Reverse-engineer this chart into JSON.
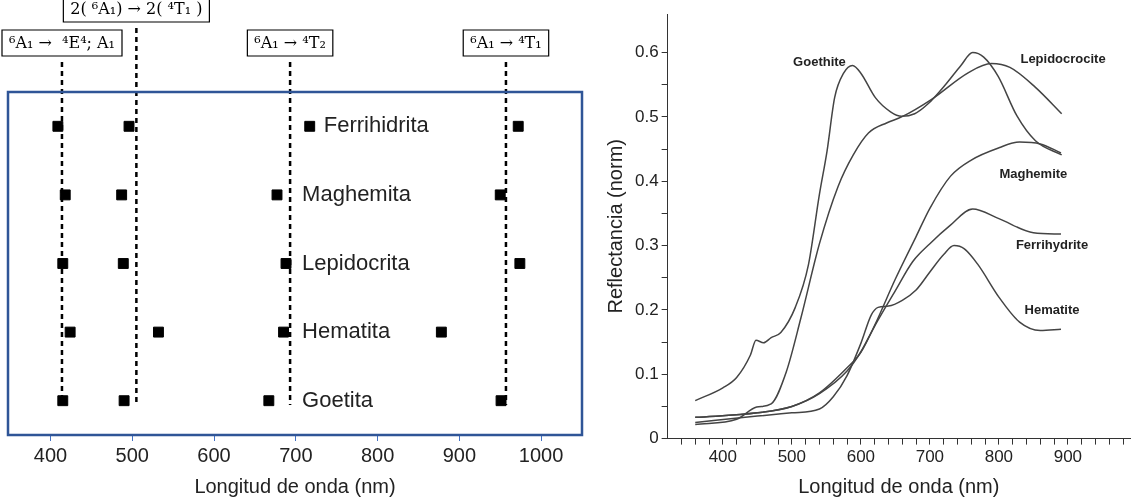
{
  "chart_data": [
    {
      "type": "scatter",
      "orientation": "horizontal",
      "xlabel": "Longitud de onda (nm)",
      "categories": [
        "Ferrihidrita",
        "Maghemita",
        "Lepidocrita",
        "Hematita",
        "Goetita"
      ],
      "series": [
        {
          "color": "#000000",
          "values": [
            409,
            418,
            415,
            424,
            415
          ]
        },
        {
          "color": "#000000",
          "values": [
            496,
            487,
            489,
            532,
            490
          ]
        },
        {
          "color": "#000000",
          "values": [
            717,
            677,
            688,
            685,
            667
          ]
        },
        {
          "color": "#000000",
          "values": [
            972,
            950,
            974,
            878,
            951
          ]
        }
      ],
      "marker": "square",
      "xlim": [
        348,
        1050
      ],
      "xticks": [
        400,
        500,
        600,
        700,
        800,
        900,
        1000
      ],
      "tick_labels": "x",
      "grid": false,
      "legend": false,
      "ref_lines": [
        {
          "axis": "x",
          "value": 414,
          "label": "⁶A₁ →  ⁴E⁴; A₁",
          "line_style": "dashed",
          "color": "#000000"
        },
        {
          "axis": "x",
          "value": 505,
          "label": "2( ⁶A₁) → 2( ⁴T₁ )",
          "line_style": "dashed",
          "color": "#000000"
        },
        {
          "axis": "x",
          "value": 693,
          "label": "⁶A₁ → ⁴T₂",
          "line_style": "dashed",
          "color": "#000000"
        },
        {
          "axis": "x",
          "value": 957,
          "label": "⁶A₁ → ⁴T₁",
          "line_style": "dashed",
          "color": "#000000"
        }
      ]
    },
    {
      "type": "line",
      "xlabel": "Longitud de onda (nm)",
      "ylabel": "Reflectancia (norm)",
      "marker": "none",
      "line_style": "solid",
      "grid": false,
      "legend": false,
      "xlim": [
        320,
        990
      ],
      "ylim": [
        0,
        0.66
      ],
      "xticks": [
        {
          "value": 340,
          "label": null
        },
        {
          "value": 360,
          "label": null
        },
        {
          "value": 380,
          "label": null
        },
        400,
        {
          "value": 420,
          "label": null
        },
        {
          "value": 440,
          "label": null
        },
        {
          "value": 460,
          "label": null
        },
        {
          "value": 480,
          "label": null
        },
        500,
        {
          "value": 520,
          "label": null
        },
        {
          "value": 540,
          "label": null
        },
        {
          "value": 560,
          "label": null
        },
        {
          "value": 580,
          "label": null
        },
        600,
        {
          "value": 620,
          "label": null
        },
        {
          "value": 640,
          "label": null
        },
        {
          "value": 660,
          "label": null
        },
        {
          "value": 680,
          "label": null
        },
        700,
        {
          "value": 720,
          "label": null
        },
        {
          "value": 740,
          "label": null
        },
        {
          "value": 760,
          "label": null
        },
        {
          "value": 780,
          "label": null
        },
        800,
        {
          "value": 820,
          "label": null
        },
        {
          "value": 840,
          "label": null
        },
        {
          "value": 860,
          "label": null
        },
        {
          "value": 880,
          "label": null
        },
        900,
        {
          "value": 920,
          "label": null
        },
        {
          "value": 940,
          "label": null
        },
        {
          "value": 960,
          "label": null
        },
        {
          "value": 980,
          "label": null
        }
      ],
      "yticks": [
        0,
        {
          "value": 0.05,
          "label": null
        },
        0.1,
        {
          "value": 0.15,
          "label": null
        },
        0.2,
        {
          "value": 0.25,
          "label": null
        },
        0.3,
        {
          "value": 0.35,
          "label": null
        },
        0.4,
        {
          "value": 0.45,
          "label": null
        },
        0.5,
        {
          "value": 0.55,
          "label": null
        },
        0.6
      ],
      "series": [
        {
          "name": "Goethite",
          "color": "#444444",
          "x": [
            360,
            400,
            420,
            440,
            448,
            459,
            470,
            484,
            505,
            524,
            540,
            551,
            562,
            575,
            588,
            600,
            621,
            643,
            659,
            678,
            697,
            724,
            745,
            762,
            778,
            799,
            826,
            853,
            891
          ],
          "values": [
            0.059,
            0.079,
            0.095,
            0.13,
            0.153,
            0.149,
            0.157,
            0.165,
            0.204,
            0.27,
            0.38,
            0.447,
            0.53,
            0.568,
            0.58,
            0.568,
            0.53,
            0.508,
            0.501,
            0.505,
            0.52,
            0.552,
            0.58,
            0.6,
            0.593,
            0.563,
            0.502,
            0.463,
            0.441
          ]
        },
        {
          "name": "Lepidocrocite",
          "color": "#444444",
          "x": [
            360,
            420,
            449,
            470,
            492,
            513,
            540,
            567,
            589,
            611,
            638,
            659,
            702,
            756,
            789,
            816,
            853,
            891
          ],
          "values": [
            0.022,
            0.03,
            0.049,
            0.054,
            0.104,
            0.187,
            0.303,
            0.392,
            0.441,
            0.475,
            0.491,
            0.5,
            0.527,
            0.569,
            0.583,
            0.577,
            0.546,
            0.505
          ]
        },
        {
          "name": "Maghemite",
          "color": "#444444",
          "x": [
            360,
            450,
            500,
            540,
            580,
            600,
            620,
            650,
            680,
            700,
            730,
            760,
            800,
            830,
            860,
            890
          ],
          "values": [
            0.033,
            0.04,
            0.05,
            0.071,
            0.11,
            0.134,
            0.176,
            0.248,
            0.314,
            0.358,
            0.408,
            0.433,
            0.452,
            0.461,
            0.458,
            0.444
          ]
        },
        {
          "name": "Ferrihydrite",
          "color": "#444444",
          "x": [
            360,
            450,
            500,
            540,
            580,
            600,
            620,
            650,
            675,
            700,
            729,
            762,
            800,
            850,
            890
          ],
          "values": [
            0.033,
            0.04,
            0.05,
            0.07,
            0.105,
            0.135,
            0.175,
            0.23,
            0.275,
            0.303,
            0.331,
            0.357,
            0.342,
            0.32,
            0.318
          ]
        },
        {
          "name": "Hematite",
          "color": "#444444",
          "x": [
            360,
            450,
            500,
            540,
            560,
            580,
            600,
            615,
            625,
            640,
            660,
            680,
            700,
            720,
            735,
            750,
            770,
            800,
            830,
            860,
            890
          ],
          "values": [
            0.025,
            0.035,
            0.04,
            0.046,
            0.065,
            0.098,
            0.148,
            0.192,
            0.204,
            0.206,
            0.215,
            0.231,
            0.259,
            0.286,
            0.3,
            0.295,
            0.27,
            0.22,
            0.181,
            0.168,
            0.17
          ]
        }
      ]
    }
  ]
}
